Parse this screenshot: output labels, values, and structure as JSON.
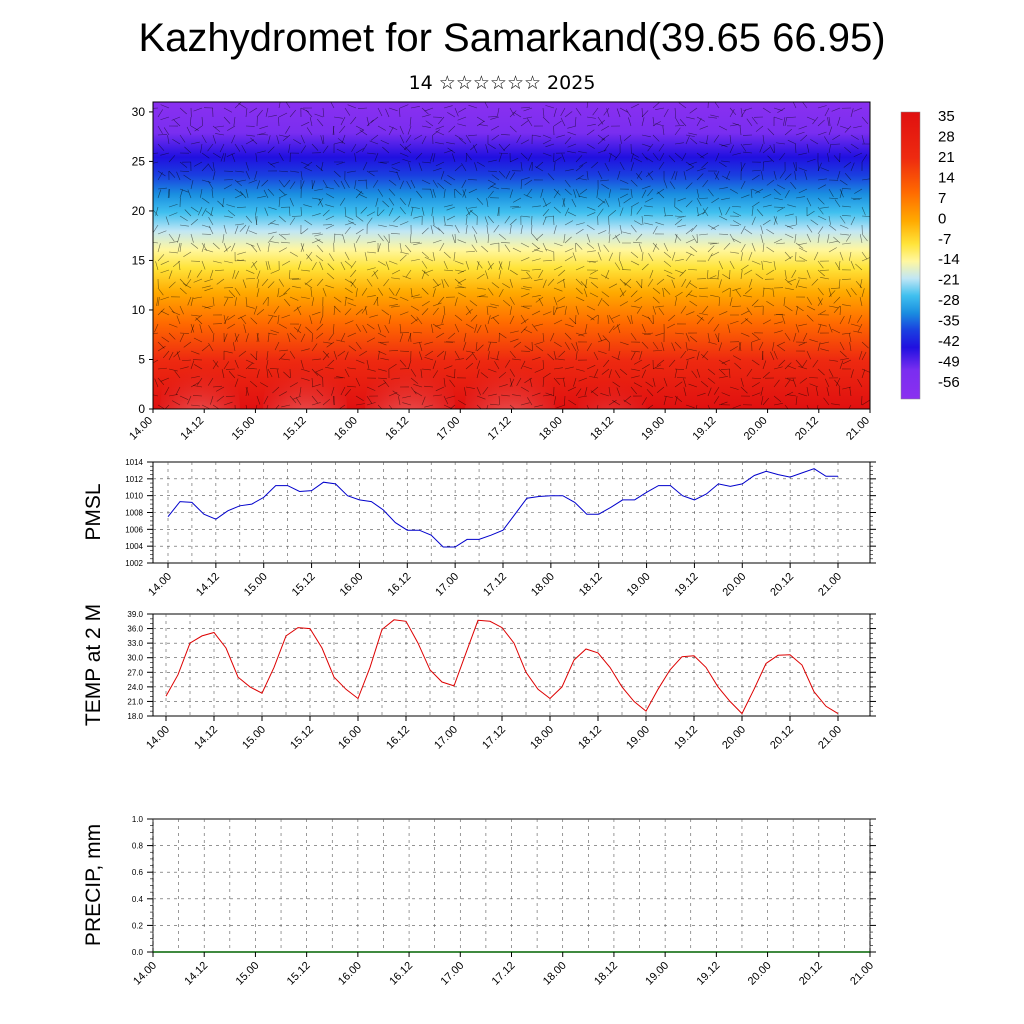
{
  "title": "Kazhydromet for Samarkand(39.65 66.95)",
  "subtitle": "14 ☆☆☆☆☆☆ 2025",
  "colors": {
    "pmsl_line": "#0000cc",
    "temp_line": "#dd0000",
    "precip_line": "#006400"
  },
  "chart_data": [
    {
      "type": "heatmap",
      "description_of_field": "vertical cross-section of temperature with wind barbs",
      "x_ticks": [
        "14.00",
        "14.12",
        "15.00",
        "15.12",
        "16.00",
        "16.12",
        "17.00",
        "17.12",
        "18.00",
        "18.12",
        "19.00",
        "19.12",
        "20.00",
        "20.12",
        "21.00"
      ],
      "y_ticks": [
        0,
        5,
        10,
        15,
        20,
        25,
        30
      ],
      "ylim": [
        0,
        31
      ],
      "colorbar": {
        "labels": [
          "35",
          "28",
          "21",
          "14",
          "7",
          "0",
          "-7",
          "-14",
          "-21",
          "-28",
          "-35",
          "-42",
          "-49",
          "-56"
        ],
        "colors": [
          "#f5c4c4",
          "#ee4040",
          "#dd1010",
          "#ee2a10",
          "#ff6a00",
          "#ffaa00",
          "#ffe43a",
          "#fff7a0",
          "#c0e6f5",
          "#40c0ef",
          "#1a8ee0",
          "#1a40e0",
          "#2010e0",
          "#7a2ef0"
        ]
      },
      "temperature_profile": {
        "heights": [
          0,
          5,
          10,
          15,
          20,
          25,
          30
        ],
        "values": [
          21,
          14,
          0,
          -14,
          -35,
          -56,
          -56
        ]
      }
    },
    {
      "type": "line",
      "ylabel": "PMSL",
      "ylim": [
        1002,
        1014
      ],
      "y_ticks": [
        1002,
        1004,
        1006,
        1008,
        1010,
        1012,
        1014
      ],
      "x_ticks": [
        "14.00",
        "14.12",
        "15.00",
        "15.12",
        "16.00",
        "16.12",
        "17.00",
        "17.12",
        "18.00",
        "18.12",
        "19.00",
        "19.12",
        "20.00",
        "20.12",
        "21.00"
      ],
      "x_step_hours": 3,
      "values": [
        1007.5,
        1009.3,
        1009.2,
        1007.8,
        1007.2,
        1008.2,
        1008.8,
        1009.0,
        1009.8,
        1011.2,
        1011.2,
        1010.5,
        1010.6,
        1011.6,
        1011.4,
        1010.0,
        1009.5,
        1009.3,
        1008.3,
        1006.8,
        1005.9,
        1005.9,
        1005.3,
        1003.9,
        1003.9,
        1004.8,
        1004.8,
        1005.3,
        1005.9,
        1007.8,
        1009.7,
        1009.9,
        1010.0,
        1010.0,
        1009.2,
        1007.8,
        1007.8,
        1008.6,
        1009.5,
        1009.5,
        1010.4,
        1011.2,
        1011.2,
        1010.0,
        1009.5,
        1010.2,
        1011.4,
        1011.1,
        1011.4,
        1012.4,
        1012.9,
        1012.5,
        1012.2,
        1012.7,
        1013.2,
        1012.3,
        1012.3
      ]
    },
    {
      "type": "line",
      "ylabel": "TEMP at 2 M",
      "ylim": [
        18.0,
        39.0
      ],
      "y_ticks": [
        "18.0",
        "21.0",
        "24.0",
        "27.0",
        "30.0",
        "33.0",
        "36.0",
        "39.0"
      ],
      "x_ticks": [
        "14.00",
        "14.12",
        "15.00",
        "15.12",
        "16.00",
        "16.12",
        "17.00",
        "17.12",
        "18.00",
        "18.12",
        "19.00",
        "19.12",
        "20.00",
        "20.12",
        "21.00"
      ],
      "x_step_hours": 3,
      "values": [
        22.1,
        26.5,
        33.0,
        34.5,
        35.2,
        32.0,
        26.0,
        24.0,
        22.7,
        28.0,
        34.5,
        36.2,
        36.0,
        32.0,
        26.0,
        23.5,
        21.6,
        28.0,
        35.8,
        37.8,
        37.5,
        33.0,
        27.5,
        25.0,
        24.2,
        31.0,
        37.7,
        37.5,
        36.2,
        33.0,
        27.0,
        23.5,
        21.6,
        24.0,
        29.5,
        31.8,
        31.0,
        28.0,
        24.0,
        21.0,
        19.0,
        23.5,
        27.5,
        30.2,
        30.4,
        28.0,
        24.0,
        21.0,
        18.5,
        23.5,
        28.8,
        30.5,
        30.6,
        28.5,
        23.0,
        20.0,
        18.5
      ]
    },
    {
      "type": "line",
      "ylabel": "PRECIP, mm",
      "ylim": [
        0.0,
        1.0
      ],
      "y_ticks": [
        "0.0",
        "0.2",
        "0.4",
        "0.6",
        "0.8",
        "1.0"
      ],
      "x_ticks": [
        "14.00",
        "14.12",
        "15.00",
        "15.12",
        "16.00",
        "16.12",
        "17.00",
        "17.12",
        "18.00",
        "18.12",
        "19.00",
        "19.12",
        "20.00",
        "20.12",
        "21.00"
      ],
      "values": [
        0,
        0,
        0,
        0,
        0,
        0,
        0,
        0,
        0,
        0,
        0,
        0,
        0,
        0,
        0
      ]
    }
  ]
}
